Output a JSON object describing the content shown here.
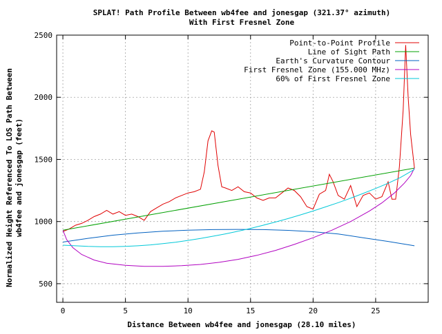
{
  "chart_data": {
    "type": "line",
    "title_line1": "SPLAT! Path Profile Between wb4fee and jonesgap (321.37° azimuth)",
    "title_line2": "With First Fresnel Zone",
    "xlabel": "Distance Between wb4fee and jonesgap (28.10 miles)",
    "ylabel_line1": "Normalized Height Referenced To LOS Path Between",
    "ylabel_line2": "wb4fee and jonesgap (feet)",
    "xlim": [
      -0.5,
      29.2
    ],
    "ylim": [
      350,
      2500
    ],
    "xticks": [
      0,
      5,
      10,
      15,
      20,
      25
    ],
    "yticks": [
      500,
      1000,
      1500,
      2000,
      2500
    ],
    "grid": true,
    "legend_position": "top-right",
    "series": [
      {
        "name": "Point-to-Point Profile",
        "color": "#e00000",
        "x": [
          0,
          0.5,
          1,
          1.5,
          2,
          2.5,
          3,
          3.5,
          4,
          4.5,
          5,
          5.5,
          6,
          6.5,
          7,
          7.5,
          8,
          8.5,
          9,
          9.5,
          10,
          10.5,
          11,
          11.3,
          11.6,
          11.9,
          12.1,
          12.4,
          12.7,
          13,
          13.5,
          14,
          14.5,
          15,
          15.5,
          16,
          16.5,
          17,
          17.5,
          18,
          18.5,
          19,
          19.5,
          20,
          20.5,
          21,
          21.3,
          21.6,
          22,
          22.5,
          23,
          23.5,
          24,
          24.5,
          25,
          25.5,
          26,
          26.3,
          26.6,
          26.9,
          27.2,
          27.4,
          27.6,
          27.8,
          28.1
        ],
        "y": [
          920,
          940,
          970,
          985,
          1010,
          1040,
          1060,
          1090,
          1060,
          1080,
          1050,
          1060,
          1040,
          1010,
          1080,
          1110,
          1140,
          1160,
          1190,
          1210,
          1230,
          1240,
          1260,
          1400,
          1650,
          1730,
          1720,
          1450,
          1280,
          1270,
          1250,
          1280,
          1240,
          1230,
          1190,
          1170,
          1190,
          1190,
          1230,
          1270,
          1250,
          1200,
          1120,
          1100,
          1220,
          1250,
          1380,
          1320,
          1210,
          1180,
          1290,
          1120,
          1210,
          1230,
          1180,
          1200,
          1320,
          1180,
          1180,
          1440,
          1900,
          2420,
          2000,
          1700,
          1430
        ]
      },
      {
        "name": "Line of Sight Path",
        "color": "#00a000",
        "x": [
          0,
          28.1
        ],
        "y": [
          930,
          1430
        ]
      },
      {
        "name": "Earth's Curvature Contour",
        "color": "#0060c0",
        "x": [
          0,
          2,
          4,
          6,
          8,
          10,
          12,
          14,
          16,
          18,
          20,
          22,
          24,
          26,
          28.1
        ],
        "y": [
          835,
          865,
          890,
          908,
          922,
          930,
          935,
          937,
          935,
          929,
          918,
          900,
          870,
          840,
          805
        ]
      },
      {
        "name": "First Fresnel Zone (155.000 MHz)",
        "color": "#b000c0",
        "x": [
          0,
          0.3,
          0.8,
          1.5,
          2.5,
          3.5,
          5,
          6.5,
          8,
          9.5,
          11,
          12.5,
          14,
          15.5,
          17,
          18.5,
          20,
          21.5,
          23,
          24.5,
          25.5,
          26.5,
          27.3,
          27.8,
          28.1
        ],
        "y": [
          930,
          855,
          790,
          735,
          690,
          665,
          648,
          640,
          640,
          645,
          655,
          672,
          696,
          728,
          768,
          816,
          870,
          930,
          1000,
          1085,
          1150,
          1230,
          1310,
          1370,
          1430
        ]
      },
      {
        "name": "60% of First Fresnel Zone",
        "color": "#00c8d8",
        "x": [
          0,
          1,
          2,
          3,
          4,
          5,
          6,
          7,
          8,
          9,
          10,
          11,
          12,
          13,
          14,
          15,
          16,
          17,
          18,
          19,
          20,
          21,
          22,
          23,
          24,
          25,
          26,
          27,
          28.1
        ],
        "y": [
          810,
          805,
          800,
          798,
          797,
          800,
          805,
          812,
          822,
          834,
          848,
          864,
          882,
          901,
          922,
          945,
          970,
          996,
          1024,
          1054,
          1085,
          1118,
          1152,
          1188,
          1226,
          1266,
          1308,
          1355,
          1420
        ]
      }
    ]
  }
}
